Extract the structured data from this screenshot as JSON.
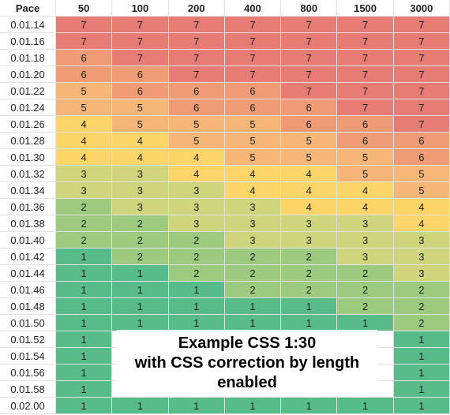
{
  "table": {
    "header": [
      "Pace",
      "50",
      "100",
      "200",
      "400",
      "800",
      "1500",
      "3000"
    ],
    "rows": [
      [
        "0.01.14",
        7,
        7,
        7,
        7,
        7,
        7,
        7
      ],
      [
        "0.01.16",
        7,
        7,
        7,
        7,
        7,
        7,
        7
      ],
      [
        "0.01.18",
        6,
        7,
        7,
        7,
        7,
        7,
        7
      ],
      [
        "0.01.20",
        6,
        6,
        7,
        7,
        7,
        7,
        7
      ],
      [
        "0.01.22",
        5,
        6,
        6,
        6,
        7,
        7,
        7
      ],
      [
        "0.01.24",
        5,
        5,
        6,
        6,
        6,
        7,
        7
      ],
      [
        "0.01.26",
        4,
        5,
        5,
        5,
        6,
        6,
        7
      ],
      [
        "0.01.28",
        4,
        4,
        5,
        5,
        5,
        6,
        6
      ],
      [
        "0.01.30",
        4,
        4,
        4,
        5,
        5,
        5,
        6
      ],
      [
        "0.01.32",
        3,
        3,
        4,
        4,
        4,
        5,
        5
      ],
      [
        "0.01.34",
        3,
        3,
        3,
        4,
        4,
        4,
        5
      ],
      [
        "0.01.36",
        2,
        3,
        3,
        3,
        4,
        4,
        4
      ],
      [
        "0.01.38",
        2,
        2,
        3,
        3,
        3,
        3,
        4
      ],
      [
        "0.01.40",
        2,
        2,
        2,
        3,
        3,
        3,
        3
      ],
      [
        "0.01.42",
        1,
        2,
        2,
        2,
        2,
        3,
        3
      ],
      [
        "0.01.44",
        1,
        1,
        2,
        2,
        2,
        2,
        3
      ],
      [
        "0.01.46",
        1,
        1,
        1,
        2,
        2,
        2,
        2
      ],
      [
        "0.01.48",
        1,
        1,
        1,
        1,
        1,
        2,
        2
      ],
      [
        "0.01.50",
        1,
        1,
        1,
        1,
        1,
        1,
        2
      ],
      [
        "0.01.52",
        1,
        null,
        null,
        null,
        null,
        null,
        1
      ],
      [
        "0.01.54",
        1,
        null,
        null,
        null,
        null,
        null,
        1
      ],
      [
        "0.01.56",
        1,
        null,
        null,
        null,
        null,
        null,
        1
      ],
      [
        "0.01.58",
        1,
        null,
        null,
        null,
        null,
        null,
        1
      ],
      [
        "0.02.00",
        1,
        1,
        1,
        1,
        1,
        1,
        1
      ]
    ]
  },
  "overlay": {
    "lines": [
      "Example CSS 1:30",
      "with CSS correction by length",
      "enabled"
    ]
  }
}
